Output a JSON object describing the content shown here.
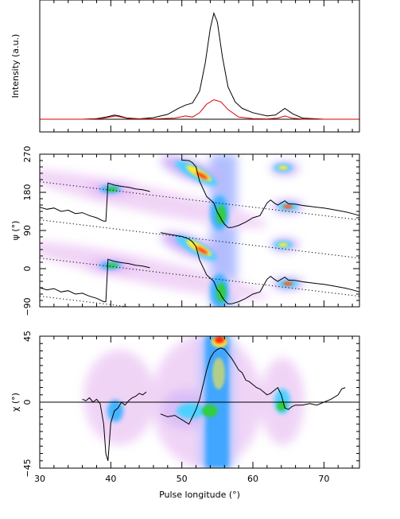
{
  "chart_data": [
    {
      "type": "line",
      "ylabel": "Intensity (a.u.)",
      "xlim": [
        30,
        75
      ],
      "series": [
        {
          "color": "#000000",
          "x": [
            30,
            36,
            38,
            39.5,
            40.5,
            41.2,
            42.2,
            44,
            46,
            48,
            49.5,
            50.5,
            51.5,
            52.5,
            53.3,
            54,
            54.5,
            55,
            55.7,
            56.5,
            57.5,
            58.5,
            60,
            62,
            63.2,
            64.5,
            65.6,
            67,
            70,
            72,
            75
          ],
          "y": [
            0.0,
            0.0,
            0.005,
            0.022,
            0.038,
            0.03,
            0.012,
            0.004,
            0.015,
            0.045,
            0.1,
            0.13,
            0.15,
            0.26,
            0.52,
            0.84,
            0.98,
            0.9,
            0.58,
            0.3,
            0.16,
            0.1,
            0.06,
            0.03,
            0.04,
            0.1,
            0.05,
            0.01,
            0.0,
            0.0,
            0.0
          ]
        },
        {
          "color": "#dd0000",
          "x": [
            30,
            37,
            39,
            40.7,
            42.5,
            46,
            49,
            50.5,
            51.5,
            52.5,
            53.5,
            54.5,
            55.5,
            56.5,
            58,
            60,
            62,
            63.5,
            64.5,
            65.5,
            67,
            70,
            75
          ],
          "y": [
            0.0,
            0.0,
            0.01,
            0.03,
            0.006,
            0.003,
            0.01,
            0.03,
            0.02,
            0.06,
            0.14,
            0.18,
            0.16,
            0.09,
            0.02,
            0.005,
            0.003,
            0.01,
            0.03,
            0.01,
            0.002,
            0.0,
            0.0
          ]
        }
      ]
    },
    {
      "type": "scatter",
      "ylabel": "ψ (°)",
      "xlim": [
        30,
        75
      ],
      "ylim": [
        -90,
        270
      ],
      "yticks": [
        "−90",
        "0",
        "90",
        "180",
        "270"
      ],
      "yticks_values": [
        -90,
        0,
        90,
        180,
        270
      ],
      "grid": false,
      "dotted_lines": [
        {
          "x": [
            30,
            75
          ],
          "y": [
            205,
            115
          ]
        },
        {
          "x": [
            30,
            75
          ],
          "y": [
            115,
            25
          ]
        },
        {
          "x": [
            30,
            75
          ],
          "y": [
            25,
            -65
          ]
        },
        {
          "x": [
            30,
            75
          ],
          "y": [
            -65,
            -155
          ]
        }
      ],
      "pa_line_1": {
        "x": [
          30,
          31,
          32,
          33,
          34,
          35,
          36,
          37,
          38,
          39,
          39.3,
          39.6,
          40.5,
          41.5,
          42.5,
          43.5,
          44.5,
          45.5
        ],
        "y": [
          -45,
          -50,
          -47,
          -55,
          -52,
          -60,
          -58,
          -65,
          -70,
          -78,
          -78,
          22,
          17,
          14,
          12,
          8,
          6,
          2
        ]
      },
      "pa_line_2": {
        "x": [
          30,
          31,
          32,
          33,
          34,
          35,
          36,
          37,
          38,
          39,
          39.3,
          39.6,
          40.5,
          41.5,
          42.5,
          43.5,
          44.5,
          45.5
        ],
        "y": [
          145,
          140,
          143,
          135,
          138,
          130,
          132,
          125,
          120,
          112,
          112,
          202,
          197,
          194,
          192,
          188,
          186,
          182
        ]
      },
      "pa_line_3": {
        "x": [
          47,
          48.5,
          50,
          51,
          51.5,
          52,
          52.5,
          53.5,
          54.5,
          55,
          55.3,
          55.6,
          56,
          56.5,
          57,
          58,
          59,
          60,
          61,
          61.5,
          62,
          62.5,
          63,
          63.5,
          64,
          64.5,
          65,
          66,
          67,
          68,
          69,
          70,
          71,
          72,
          73,
          74,
          75
        ],
        "y": [
          85,
          80,
          76,
          70,
          63,
          52,
          20,
          -15,
          -30,
          -50,
          -55,
          -65,
          -75,
          -83,
          -83,
          -78,
          -70,
          -60,
          -55,
          -40,
          -25,
          -18,
          -25,
          -30,
          -25,
          -20,
          -27,
          -28,
          -31,
          -33,
          -35,
          -37,
          -40,
          -43,
          -46,
          -50,
          -55
        ]
      },
      "pa_line_4": {
        "x": [
          50,
          51,
          51.5,
          52,
          52.5,
          53.5,
          54.5,
          55,
          55.3,
          55.6,
          56,
          56.5,
          57,
          58,
          59,
          60,
          61,
          61.5,
          62,
          62.5,
          63,
          63.5,
          64,
          64.5,
          65,
          66,
          67,
          68,
          69,
          70,
          71,
          72,
          73,
          74,
          75
        ],
        "y": [
          256,
          255,
          250,
          240,
          206,
          170,
          155,
          133,
          125,
          115,
          105,
          97,
          97,
          102,
          110,
          120,
          125,
          140,
          155,
          162,
          155,
          150,
          155,
          160,
          153,
          152,
          149,
          147,
          145,
          143,
          140,
          137,
          134,
          130,
          125
        ]
      }
    },
    {
      "type": "scatter",
      "ylabel": "χ (°)",
      "xlim": [
        30,
        75
      ],
      "xticks_values": [
        30,
        40,
        50,
        60,
        70
      ],
      "ylim": [
        -45,
        45
      ],
      "yticks": [
        "−45",
        "0",
        "45"
      ],
      "yticks_values": [
        -45,
        0,
        45
      ],
      "xlabel": "Pulse longitude (°)",
      "series": [
        {
          "color": "#000000",
          "x": [
            36,
            36.5,
            37,
            37.5,
            38,
            38.5,
            39,
            39.3,
            39.6,
            40,
            40.5,
            41,
            41.5,
            42,
            42.5,
            43,
            43.5,
            44,
            44.5,
            45
          ],
          "y": [
            2,
            1,
            3,
            0,
            2,
            -1,
            -15,
            -35,
            -40,
            -14,
            -6,
            -4,
            0,
            -2,
            1,
            3,
            4,
            6,
            5,
            7
          ]
        },
        {
          "color": "#000000",
          "x": [
            47,
            48,
            49,
            50,
            51,
            51.5,
            52,
            52.5,
            53,
            53.5,
            54,
            54.5,
            55,
            55.5,
            56,
            56.5,
            57,
            57.5,
            58,
            58.5,
            59,
            59.5,
            60,
            60.5,
            61,
            61.5,
            62,
            62.5,
            63,
            63.5,
            64,
            64.5,
            65,
            65.5,
            66,
            67,
            68,
            69,
            70,
            71,
            72,
            72.5,
            73
          ],
          "y": [
            -8,
            -10,
            -9,
            -12,
            -15,
            -10,
            -5,
            2,
            12,
            22,
            30,
            34,
            36,
            37,
            36,
            33,
            30,
            26,
            22,
            20,
            15,
            14,
            12,
            10,
            9,
            7,
            5,
            6,
            8,
            10,
            5,
            -4,
            -5,
            -3,
            -2,
            -2,
            -1,
            -2,
            0,
            2,
            5,
            9,
            10
          ]
        }
      ]
    }
  ]
}
